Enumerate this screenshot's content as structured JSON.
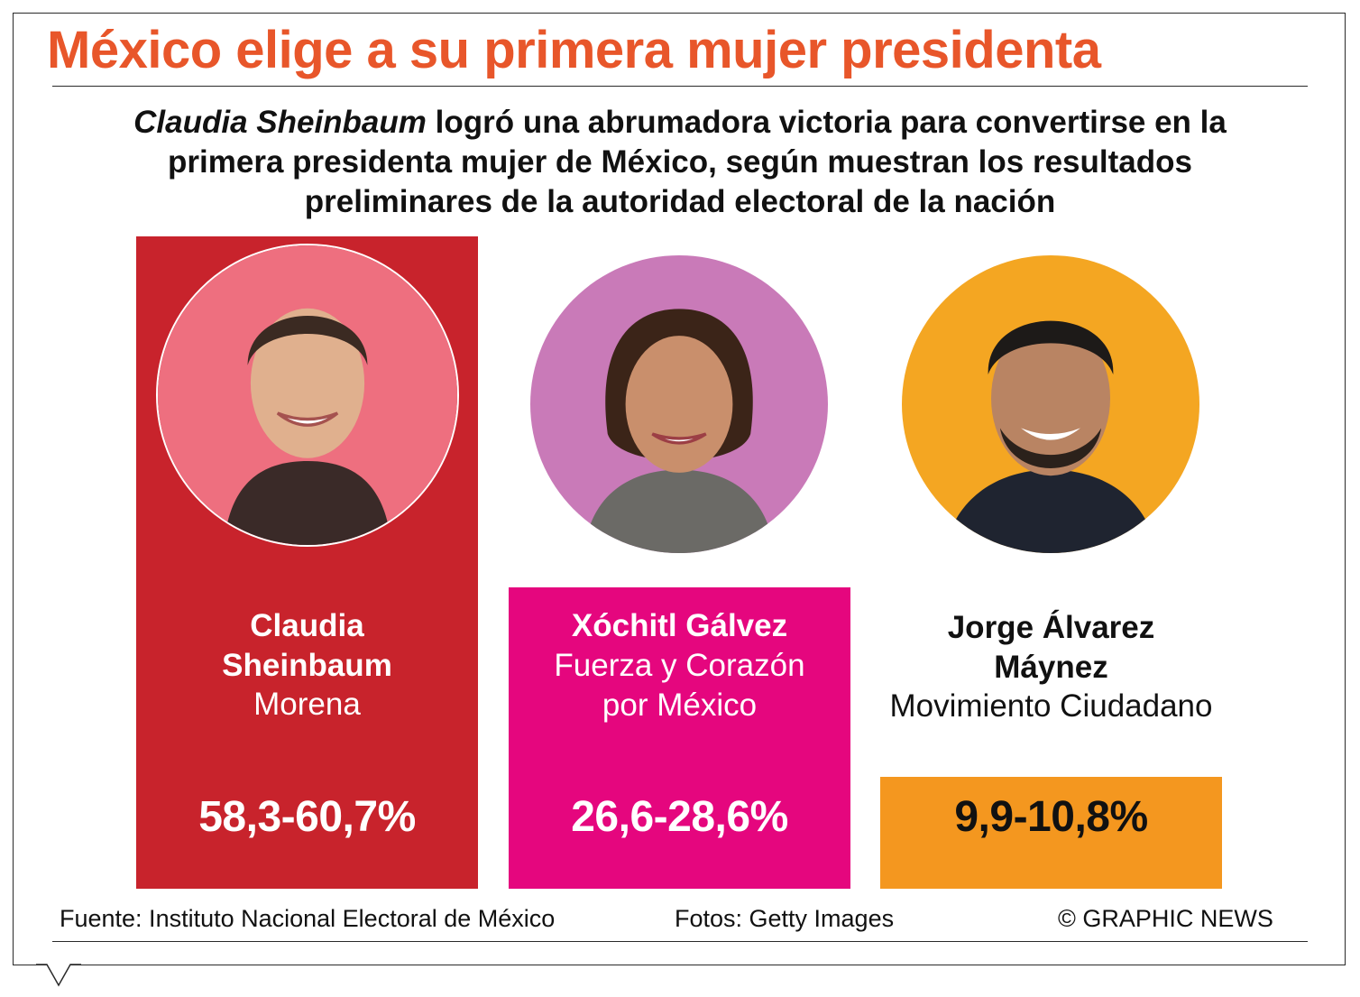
{
  "title": "México elige a su primera mujer presidenta",
  "subtitle": {
    "name": "Claudia Sheinbaum",
    "rest": " logró una abrumadora victoria para convertirse en la primera presidenta mujer de México, según muestran los resultados preliminares de la autoridad electoral de la nación"
  },
  "chart_data": {
    "type": "bar",
    "title": "México elige a su primera mujer presidenta",
    "categories": [
      "Claudia Sheinbaum",
      "Xóchitl Gálvez",
      "Jorge Álvarez Máynez"
    ],
    "parties": [
      "Morena",
      "Fuerza y Corazón por México",
      "Movimiento Ciudadano"
    ],
    "value_labels": [
      "58,3-60,7%",
      "26,6-28,6%",
      "9,9-10,8%"
    ],
    "ranges": [
      [
        58.3,
        60.7
      ],
      [
        26.6,
        28.6
      ],
      [
        9.9,
        10.8
      ]
    ],
    "colors": [
      "#c8232c",
      "#e5067e",
      "#f4971f"
    ]
  },
  "candidates": [
    {
      "name_line1": "Claudia",
      "name_line2": "Sheinbaum",
      "party_line1": "Morena",
      "party_line2": "",
      "value": "58,3-60,7%",
      "color": "#c8232c",
      "portrait_bg": "#ee6f7f"
    },
    {
      "name_line1": "Xóchitl Gálvez",
      "name_line2": "",
      "party_line1": "Fuerza y Corazón",
      "party_line2": "por México",
      "value": "26,6-28,6%",
      "color": "#e5067e",
      "portrait_bg": "#c97ab8"
    },
    {
      "name_line1": "Jorge Álvarez",
      "name_line2": "Máynez",
      "party_line1": "Movimiento Ciudadano",
      "party_line2": "",
      "value": "9,9-10,8%",
      "color": "#f4971f",
      "portrait_bg": "#f4a622"
    }
  ],
  "footer": {
    "source": "Fuente: Instituto Nacional Electoral de México",
    "photos": "Fotos: Getty Images",
    "credit": "© GRAPHIC NEWS"
  }
}
